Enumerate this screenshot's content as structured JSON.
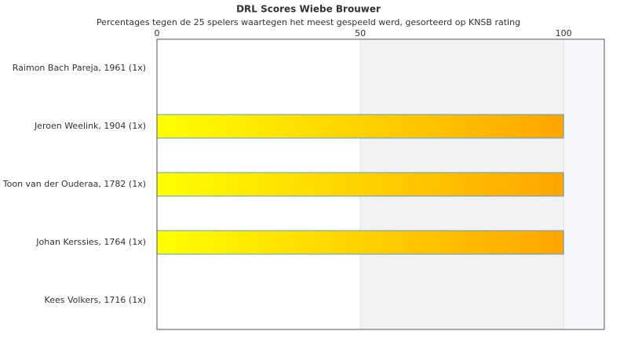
{
  "chart_data": {
    "type": "hbar",
    "title": "DRL Scores Wiebe Brouwer",
    "subtitle": "Percentages tegen de 25 spelers waartegen het meest gespeeld werd, gesorteerd op KNSB rating",
    "categories": [
      "Raimon Bach Pareja, 1961 (1x)",
      "Jeroen Weelink, 1904 (1x)",
      "Toon van der Ouderaa, 1782 (1x)",
      "Johan Kerssies, 1764 (1x)",
      "Kees Volkers, 1716 (1x)"
    ],
    "values": [
      0,
      100,
      100,
      100,
      0
    ],
    "gradient": [
      "#ffff00",
      "#ffa500"
    ],
    "border_color": "#5b9bd5",
    "xlim": [
      0,
      110
    ],
    "xticks": [
      0,
      50,
      100
    ],
    "bands": [
      "#ffffff",
      "#f2f2f2",
      "#f7f8fb"
    ],
    "grid": true
  }
}
